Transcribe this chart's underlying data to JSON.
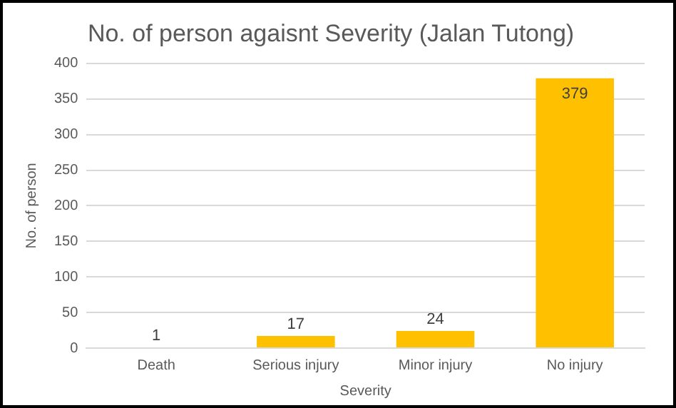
{
  "chart_data": {
    "type": "bar",
    "title": "No. of person agaisnt Severity (Jalan Tutong)",
    "xlabel": "Severity",
    "ylabel": "No. of person",
    "categories": [
      "Death",
      "Serious injury",
      "Minor injury",
      "No injury"
    ],
    "values": [
      1,
      17,
      24,
      379
    ],
    "color": "#ffc000",
    "ylim": [
      0,
      400
    ],
    "yticks": [
      0,
      50,
      100,
      150,
      200,
      250,
      300,
      350,
      400
    ],
    "grid": "y",
    "data_labels": true
  }
}
